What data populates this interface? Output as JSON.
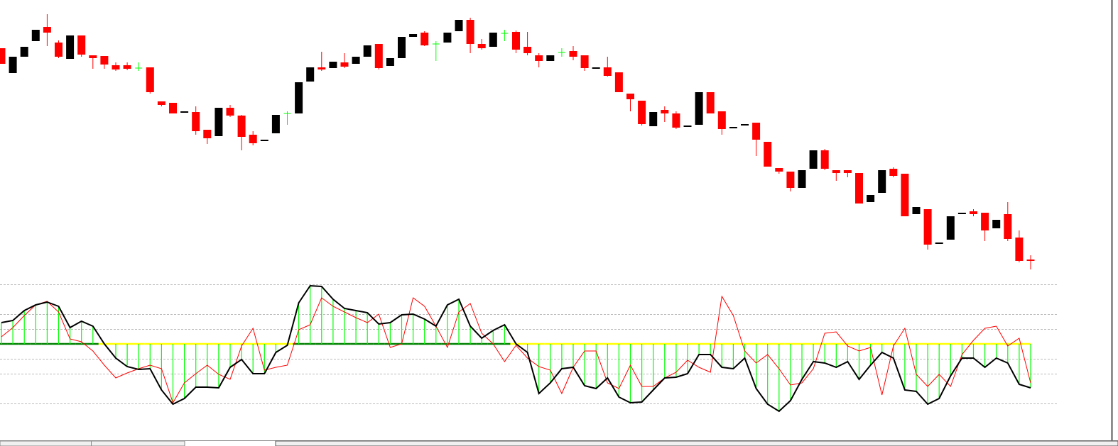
{
  "chart_data": [
    {
      "type": "candlestick",
      "ylim": [
        0,
        400
      ],
      "colors": {
        "up": "#000000",
        "down": "#ff0000",
        "flat": "#00ff00"
      },
      "open": [
        332,
        297,
        320,
        342,
        362,
        340,
        317,
        350,
        322,
        321,
        308,
        308,
        304,
        305,
        257,
        255,
        242,
        242,
        217,
        208,
        248,
        237,
        210,
        202,
        212,
        240,
        240,
        285,
        305,
        304,
        312,
        310,
        320,
        338,
        307,
        318,
        348,
        354,
        338,
        340,
        356,
        372,
        338,
        334,
        353,
        355,
        334,
        322,
        314,
        326,
        328,
        322,
        304,
        305,
        298,
        268,
        258,
        222,
        245,
        240,
        222,
        224,
        270,
        243,
        220,
        224,
        227,
        200,
        163,
        158,
        135,
        162,
        188,
        160,
        160,
        156,
        115,
        128,
        162,
        155,
        98,
        105,
        57,
        62,
        99,
        102,
        100,
        78,
        98,
        65,
        34
      ],
      "high": [
        332,
        320,
        334,
        358,
        380,
        343,
        350,
        350,
        322,
        321,
        312,
        312,
        312,
        305,
        257,
        255,
        243,
        250,
        217,
        248,
        252,
        238,
        215,
        203,
        238,
        243,
        284,
        305,
        327,
        313,
        325,
        320,
        336,
        338,
        318,
        348,
        352,
        356,
        342,
        354,
        372,
        375,
        345,
        354,
        358,
        357,
        355,
        325,
        322,
        332,
        335,
        322,
        305,
        320,
        298,
        268,
        258,
        242,
        250,
        243,
        223,
        270,
        270,
        243,
        221,
        225,
        227,
        200,
        163,
        158,
        160,
        188,
        190,
        160,
        160,
        156,
        125,
        160,
        164,
        155,
        108,
        105,
        58,
        95,
        100,
        105,
        100,
        90,
        115,
        75,
        40
      ],
      "low": [
        310,
        297,
        320,
        342,
        335,
        318,
        317,
        320,
        303,
        303,
        300,
        301,
        300,
        268,
        250,
        240,
        242,
        210,
        197,
        208,
        235,
        188,
        195,
        202,
        212,
        224,
        240,
        285,
        300,
        304,
        304,
        310,
        320,
        302,
        307,
        318,
        348,
        335,
        314,
        340,
        356,
        325,
        330,
        334,
        342,
        325,
        322,
        305,
        314,
        320,
        315,
        300,
        304,
        292,
        270,
        243,
        223,
        222,
        228,
        218,
        222,
        224,
        240,
        210,
        220,
        224,
        180,
        165,
        155,
        130,
        135,
        162,
        160,
        145,
        150,
        113,
        115,
        128,
        150,
        95,
        98,
        48,
        57,
        62,
        99,
        95,
        60,
        78,
        60,
        30,
        20
      ],
      "close": [
        310,
        320,
        334,
        358,
        354,
        320,
        350,
        323,
        318,
        309,
        302,
        303,
        304,
        270,
        252,
        240,
        243,
        215,
        205,
        248,
        237,
        207,
        198,
        203,
        238,
        240,
        284,
        305,
        302,
        313,
        306,
        320,
        336,
        304,
        318,
        348,
        352,
        336,
        338,
        354,
        372,
        338,
        332,
        354,
        353,
        330,
        325,
        314,
        322,
        326,
        320,
        304,
        305,
        293,
        270,
        260,
        225,
        242,
        240,
        220,
        223,
        270,
        240,
        218,
        221,
        225,
        203,
        165,
        158,
        135,
        160,
        188,
        162,
        156,
        156,
        113,
        125,
        160,
        152,
        95,
        108,
        55,
        58,
        95,
        100,
        98,
        75,
        90,
        63,
        32,
        32
      ]
    },
    {
      "type": "oscillator",
      "ylim": [
        -105,
        85
      ],
      "yticks": [
        84,
        42,
        21,
        -21,
        -42,
        -84
      ],
      "grid": true,
      "color": "#00ff00",
      "line_color": "#000000",
      "zero_colors": {
        "above": "#008000",
        "below": "#ffff00"
      },
      "values": [
        30,
        33,
        47,
        55,
        59,
        53,
        23,
        32,
        25,
        0,
        -20,
        -32,
        -36,
        -35,
        -65,
        -85,
        -77,
        -61,
        -61,
        -62,
        -33,
        -22,
        -42,
        -42,
        -12,
        -2,
        58,
        82,
        81,
        63,
        50,
        47,
        44,
        28,
        30,
        41,
        42,
        35,
        25,
        55,
        63,
        25,
        8,
        19,
        27,
        0,
        -12,
        -70,
        -55,
        -35,
        -33,
        -59,
        -63,
        -48,
        -75,
        -83,
        -82,
        -65,
        -48,
        -47,
        -42,
        -15,
        -15,
        -33,
        -35,
        -20,
        -63,
        -85,
        -95,
        -80,
        -50,
        -25,
        -27,
        -33,
        -25,
        -50,
        -30,
        -12,
        -20,
        -65,
        -67,
        -85,
        -77,
        -45,
        -20,
        -20,
        -33,
        -20,
        -27,
        -57,
        -62
      ],
      "series": [
        {
          "color": "#ff0000",
          "values": [
            10,
            23,
            40,
            55,
            60,
            45,
            7,
            3,
            -10,
            -30,
            -48,
            -41,
            -35,
            -30,
            -35,
            -83,
            -55,
            -42,
            -30,
            -43,
            -50,
            -3,
            22,
            -37,
            -33,
            -30,
            20,
            27,
            65,
            53,
            45,
            37,
            30,
            42,
            -5,
            0,
            65,
            53,
            25,
            -5,
            45,
            57,
            15,
            0,
            -25,
            -2,
            -20,
            -32,
            -37,
            -70,
            -33,
            -10,
            -10,
            -55,
            -63,
            -30,
            -60,
            -60,
            -48,
            -40,
            -23,
            -33,
            -40,
            67,
            40,
            -10,
            -27,
            -15,
            -35,
            -58,
            -55,
            -35,
            15,
            17,
            -3,
            -10,
            -5,
            -72,
            -3,
            22,
            -43,
            -60,
            -43,
            -60,
            -15,
            5,
            22,
            25,
            -3,
            8,
            -55
          ]
        }
      ]
    }
  ]
}
